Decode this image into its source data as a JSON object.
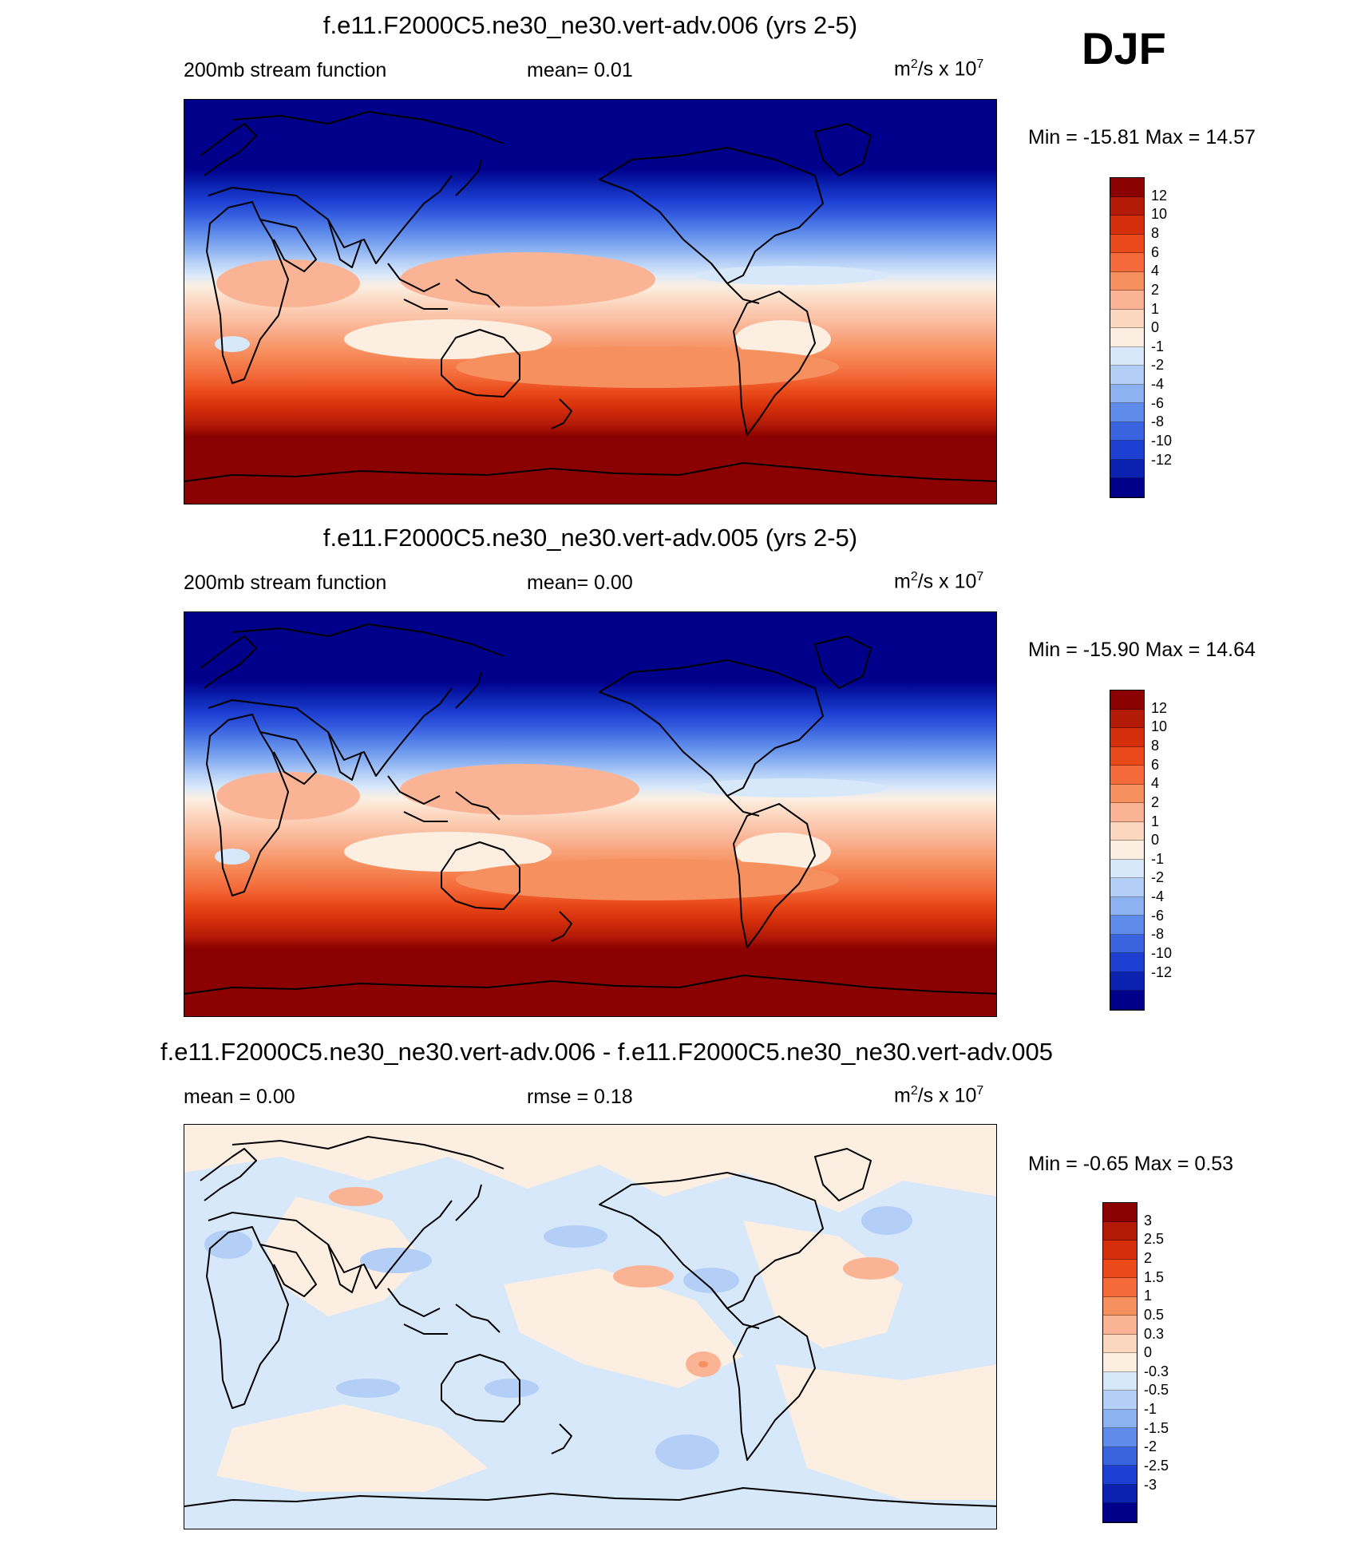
{
  "season": "DJF",
  "panels": [
    {
      "title": "f.e11.F2000C5.ne30_ne30.vert-adv.006 (yrs 2-5)",
      "left": "200mb stream function",
      "center": "mean=   0.01",
      "units_base": "m",
      "units_exp": "2",
      "units_mid": "/s x 10",
      "units_exp2": "7",
      "minmax": "Min = -15.81 Max =  14.57"
    },
    {
      "title": "f.e11.F2000C5.ne30_ne30.vert-adv.005 (yrs 2-5)",
      "left": "200mb stream function",
      "center": "mean=   0.00",
      "units_base": "m",
      "units_exp": "2",
      "units_mid": "/s x 10",
      "units_exp2": "7",
      "minmax": "Min = -15.90 Max =  14.64"
    },
    {
      "title": "f.e11.F2000C5.ne30_ne30.vert-adv.006 - f.e11.F2000C5.ne30_ne30.vert-adv.005",
      "left": "mean =   0.00",
      "center": "rmse =   0.18",
      "units_base": "m",
      "units_exp": "2",
      "units_mid": "/s x 10",
      "units_exp2": "7",
      "minmax": "Min =  -0.65 Max =   0.53"
    }
  ],
  "colorbars": {
    "main": {
      "labels": [
        "12",
        "10",
        "8",
        "6",
        "4",
        "2",
        "1",
        "0",
        "-1",
        "-2",
        "-4",
        "-6",
        "-8",
        "-10",
        "-12"
      ],
      "colors": [
        "#8b0000",
        "#b31a08",
        "#d42e0a",
        "#ea4a1a",
        "#f46a3a",
        "#f7905f",
        "#fab495",
        "#fcd7c0",
        "#fcefe2",
        "#d8e8fb",
        "#b4cff7",
        "#8db2f2",
        "#5f8ceb",
        "#3a63e0",
        "#1d3fd2",
        "#0b22b0",
        "#00008b"
      ]
    },
    "diff": {
      "labels": [
        "3",
        "2.5",
        "2",
        "1.5",
        "1",
        "0.5",
        "0.3",
        "0",
        "-0.3",
        "-0.5",
        "-1",
        "-1.5",
        "-2",
        "-2.5",
        "-3"
      ],
      "colors": [
        "#8b0000",
        "#b31a08",
        "#d42e0a",
        "#ea4a1a",
        "#f46a3a",
        "#f7905f",
        "#fab495",
        "#fcd7c0",
        "#fcefe2",
        "#d8e8fb",
        "#b4cff7",
        "#8db2f2",
        "#5f8ceb",
        "#3a63e0",
        "#1d3fd2",
        "#0b22b0",
        "#00008b"
      ]
    }
  },
  "chart_data": [
    {
      "type": "heatmap",
      "title": "f.e11.F2000C5.ne30_ne30.vert-adv.006 (yrs 2-5)",
      "variable": "200mb stream function",
      "units": "m2/s x 10^7",
      "mean": 0.01,
      "min": -15.81,
      "max": 14.57,
      "levels": [
        -12,
        -10,
        -8,
        -6,
        -4,
        -2,
        -1,
        0,
        1,
        2,
        4,
        6,
        8,
        10,
        12
      ]
    },
    {
      "type": "heatmap",
      "title": "f.e11.F2000C5.ne30_ne30.vert-adv.005 (yrs 2-5)",
      "variable": "200mb stream function",
      "units": "m2/s x 10^7",
      "mean": 0.0,
      "min": -15.9,
      "max": 14.64,
      "levels": [
        -12,
        -10,
        -8,
        -6,
        -4,
        -2,
        -1,
        0,
        1,
        2,
        4,
        6,
        8,
        10,
        12
      ]
    },
    {
      "type": "heatmap",
      "title": "f.e11.F2000C5.ne30_ne30.vert-adv.006 - f.e11.F2000C5.ne30_ne30.vert-adv.005",
      "units": "m2/s x 10^7",
      "mean": 0.0,
      "rmse": 0.18,
      "min": -0.65,
      "max": 0.53,
      "levels": [
        -3,
        -2.5,
        -2,
        -1.5,
        -1,
        -0.5,
        -0.3,
        0,
        0.3,
        0.5,
        1,
        1.5,
        2,
        2.5,
        3
      ]
    }
  ]
}
